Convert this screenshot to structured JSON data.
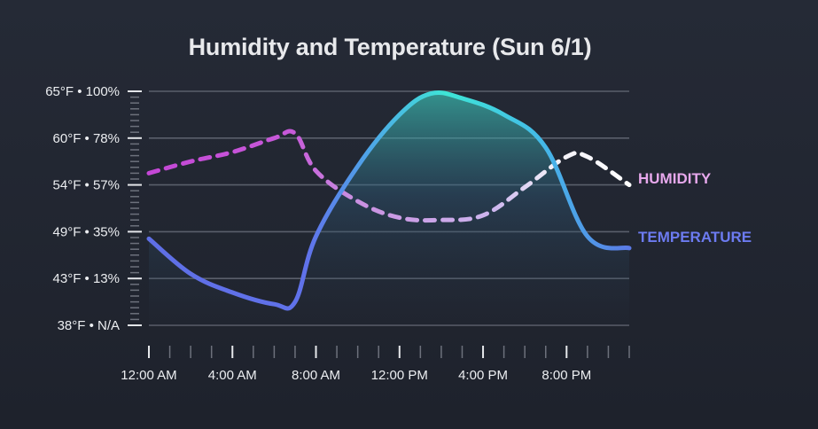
{
  "chart_data": {
    "type": "line",
    "title": "Humidity and Temperature (Sun 6/1)",
    "xlabel": "",
    "ylabel": "",
    "x_range_hours": [
      0,
      23
    ],
    "x_ticks": [
      {
        "hour": 0,
        "label": "12:00 AM"
      },
      {
        "hour": 4,
        "label": "4:00 AM"
      },
      {
        "hour": 8,
        "label": "8:00 AM"
      },
      {
        "hour": 12,
        "label": "12:00 PM"
      },
      {
        "hour": 16,
        "label": "4:00 PM"
      },
      {
        "hour": 20,
        "label": "8:00 PM"
      }
    ],
    "y_ticks": [
      {
        "value": 100,
        "label": "65°F • 100%"
      },
      {
        "value": 80,
        "label": "60°F • 78%"
      },
      {
        "value": 60,
        "label": "54°F • 57%"
      },
      {
        "value": 40,
        "label": "49°F • 35%"
      },
      {
        "value": 20,
        "label": "43°F • 13%"
      },
      {
        "value": 0,
        "label": "38°F • N/A"
      }
    ],
    "ylim": [
      0,
      100
    ],
    "grid": true,
    "series": [
      {
        "name": "HUMIDITY",
        "style": "dashed",
        "colors": [
          "#c447d6",
          "#c9a3e6",
          "#ffffff"
        ],
        "x": [
          0,
          2,
          4,
          6,
          7,
          8,
          10,
          12,
          14,
          16,
          18,
          20,
          21,
          23
        ],
        "y": [
          65,
          70,
          74,
          80,
          82,
          66,
          53,
          46,
          45,
          47,
          59,
          72,
          72,
          60
        ]
      },
      {
        "name": "TEMPERATURE",
        "style": "solid",
        "area": true,
        "colors": [
          "#5f6fe6",
          "#40c9e0",
          "#3ee6d6"
        ],
        "x": [
          0,
          2,
          4,
          6,
          7,
          8,
          10,
          12,
          13.5,
          15,
          17,
          19,
          21,
          23
        ],
        "y": [
          37,
          22,
          14,
          9,
          10,
          38,
          68,
          90,
          99,
          97,
          90,
          76,
          38,
          33
        ]
      }
    ]
  }
}
